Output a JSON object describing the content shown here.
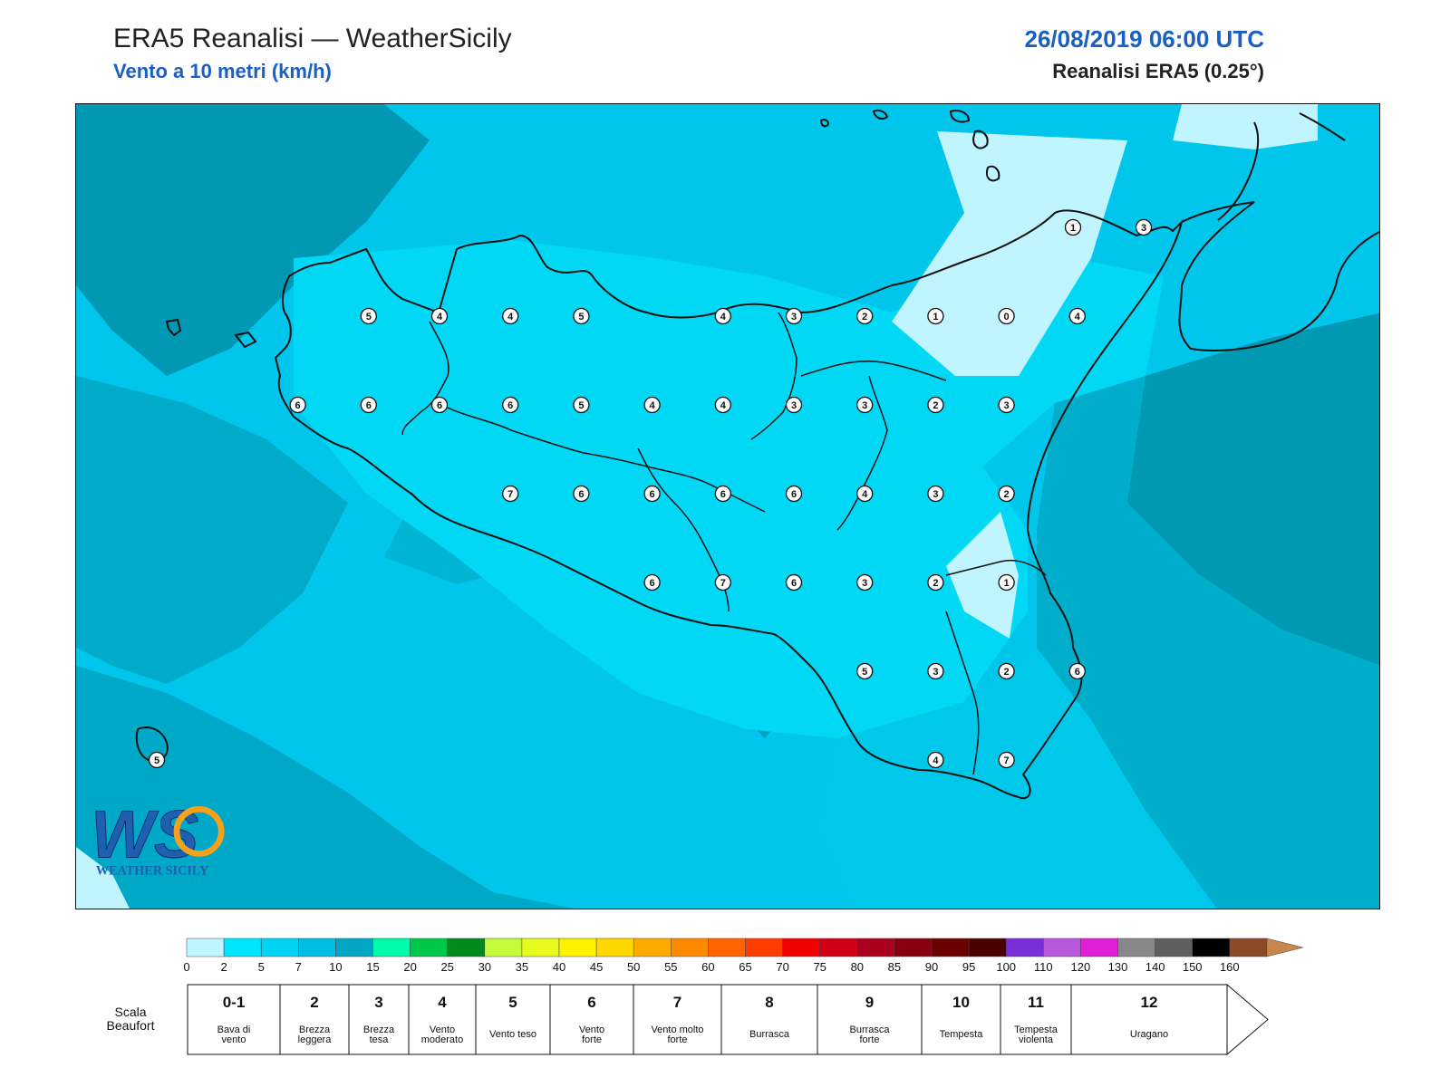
{
  "header": {
    "title": "ERA5 Reanalisi — WeatherSicily",
    "subtitle": "Vento a 10 metri (km/h)",
    "datetime": "26/08/2019 06:00 UTC",
    "source": "Reanalisi ERA5 (0.25°)"
  },
  "logo": {
    "mark": "WS",
    "text": "WEATHER SICILY"
  },
  "map": {
    "field": "wind speed at 10 m",
    "unit": "km/h",
    "beaufort_markers": [
      {
        "value": "5",
        "lon_col": 4,
        "lat_row": 1
      },
      {
        "value": "4",
        "lon_col": 5,
        "lat_row": 1
      },
      {
        "value": "4",
        "lon_col": 6,
        "lat_row": 1
      },
      {
        "value": "5",
        "lon_col": 7,
        "lat_row": 1
      },
      {
        "value": "4",
        "lon_col": 9,
        "lat_row": 1
      },
      {
        "value": "3",
        "lon_col": 10,
        "lat_row": 1
      },
      {
        "value": "2",
        "lon_col": 11,
        "lat_row": 1
      },
      {
        "value": "1",
        "lon_col": 12,
        "lat_row": 1
      },
      {
        "value": "0",
        "lon_col": 13,
        "lat_row": 1
      },
      {
        "value": "4",
        "lon_col": 14,
        "lat_row": 1
      },
      {
        "value": "6",
        "lon_col": 3,
        "lat_row": 2
      },
      {
        "value": "6",
        "lon_col": 4,
        "lat_row": 2
      },
      {
        "value": "6",
        "lon_col": 5,
        "lat_row": 2
      },
      {
        "value": "6",
        "lon_col": 6,
        "lat_row": 2
      },
      {
        "value": "5",
        "lon_col": 7,
        "lat_row": 2
      },
      {
        "value": "4",
        "lon_col": 8,
        "lat_row": 2
      },
      {
        "value": "4",
        "lon_col": 9,
        "lat_row": 2
      },
      {
        "value": "3",
        "lon_col": 10,
        "lat_row": 2
      },
      {
        "value": "3",
        "lon_col": 11,
        "lat_row": 2
      },
      {
        "value": "2",
        "lon_col": 12,
        "lat_row": 2
      },
      {
        "value": "3",
        "lon_col": 13,
        "lat_row": 2
      },
      {
        "value": "7",
        "lon_col": 6,
        "lat_row": 3
      },
      {
        "value": "6",
        "lon_col": 7,
        "lat_row": 3
      },
      {
        "value": "6",
        "lon_col": 8,
        "lat_row": 3
      },
      {
        "value": "6",
        "lon_col": 9,
        "lat_row": 3
      },
      {
        "value": "6",
        "lon_col": 10,
        "lat_row": 3
      },
      {
        "value": "4",
        "lon_col": 11,
        "lat_row": 3
      },
      {
        "value": "3",
        "lon_col": 12,
        "lat_row": 3
      },
      {
        "value": "2",
        "lon_col": 13,
        "lat_row": 3
      },
      {
        "value": "6",
        "lon_col": 8,
        "lat_row": 4
      },
      {
        "value": "7",
        "lon_col": 9,
        "lat_row": 4
      },
      {
        "value": "6",
        "lon_col": 10,
        "lat_row": 4
      },
      {
        "value": "3",
        "lon_col": 11,
        "lat_row": 4
      },
      {
        "value": "2",
        "lon_col": 12,
        "lat_row": 4
      },
      {
        "value": "1",
        "lon_col": 13,
        "lat_row": 4
      },
      {
        "value": "5",
        "lon_col": 11,
        "lat_row": 5
      },
      {
        "value": "3",
        "lon_col": 12,
        "lat_row": 5
      },
      {
        "value": "2",
        "lon_col": 13,
        "lat_row": 5
      },
      {
        "value": "6",
        "lon_col": 14,
        "lat_row": 5
      },
      {
        "value": "4",
        "lon_col": 12,
        "lat_row": 6
      },
      {
        "value": "7",
        "lon_col": 13,
        "lat_row": 6
      },
      {
        "value": "1",
        "lon_col": 14,
        "lat_row": -1
      },
      {
        "value": "3",
        "lon_col": 15,
        "lat_row": -1
      },
      {
        "value": "5",
        "lon_col": 1,
        "lat_row": 6
      }
    ]
  },
  "colorbar": {
    "ticks": [
      "0",
      "2",
      "5",
      "7",
      "10",
      "15",
      "20",
      "25",
      "30",
      "35",
      "40",
      "45",
      "50",
      "55",
      "60",
      "65",
      "70",
      "75",
      "80",
      "85",
      "90",
      "95",
      "100",
      "110",
      "120",
      "130",
      "140",
      "150",
      "160"
    ],
    "colors": [
      "#c0f4fe",
      "#00e5fe",
      "#00d2f4",
      "#00bde3",
      "#00a6c4",
      "#00fca9",
      "#00c74a",
      "#008a1c",
      "#c4fc3c",
      "#e8fa1e",
      "#fff200",
      "#ffd700",
      "#ffaa00",
      "#ff8a00",
      "#ff6400",
      "#ff3c00",
      "#f00000",
      "#d20014",
      "#aa001e",
      "#880010",
      "#6a0000",
      "#4b0000",
      "#7a2ed6",
      "#b758db",
      "#e01fd6",
      "#888888",
      "#5f5f5f",
      "#000000",
      "#8b4a2a",
      "#c8874a"
    ],
    "extend_color": "#c8874a"
  },
  "beaufort": {
    "title": "Scala Beaufort",
    "levels": [
      {
        "num": "0-1",
        "desc": "Bava di vento"
      },
      {
        "num": "2",
        "desc": "Brezza leggera"
      },
      {
        "num": "3",
        "desc": "Brezza tesa"
      },
      {
        "num": "4",
        "desc": "Vento moderato"
      },
      {
        "num": "5",
        "desc": "Vento teso"
      },
      {
        "num": "6",
        "desc": "Vento forte"
      },
      {
        "num": "7",
        "desc": "Vento molto forte"
      },
      {
        "num": "8",
        "desc": "Burrasca"
      },
      {
        "num": "9",
        "desc": "Burrasca forte"
      },
      {
        "num": "10",
        "desc": "Tempesta"
      },
      {
        "num": "11",
        "desc": "Tempesta violenta"
      },
      {
        "num": "12",
        "desc": "Uragano"
      }
    ]
  }
}
